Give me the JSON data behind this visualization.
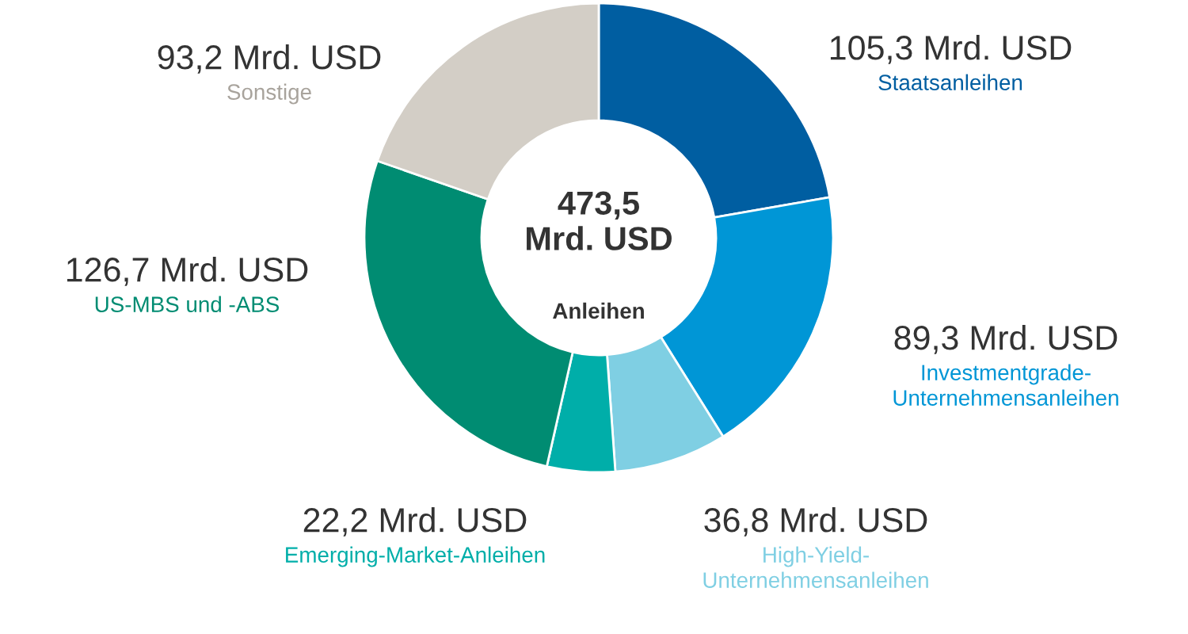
{
  "chart_data": {
    "type": "donut",
    "title": "473,5\nMrd. USD",
    "subtitle": "Anleihen",
    "categories": [
      "Staatsanleihen",
      "Investmentgrade-\nUnternehmensanleihen",
      "High-Yield-\nUnternehmensanleihen",
      "Emerging-Market-Anleihen",
      "US-MBS und -ABS",
      "Sonstige"
    ],
    "values": [
      105.3,
      89.3,
      36.8,
      22.2,
      126.7,
      93.2
    ],
    "value_labels": [
      "105,3 Mrd. USD",
      "89,3 Mrd. USD",
      "36,8 Mrd. USD",
      "22,2 Mrd. USD",
      "126,7 Mrd. USD",
      "93,2 Mrd. USD"
    ],
    "colors": [
      "#005ea1",
      "#0096d6",
      "#7fcfe3",
      "#00aea9",
      "#008c72",
      "#d3cec6"
    ],
    "legend": false
  }
}
